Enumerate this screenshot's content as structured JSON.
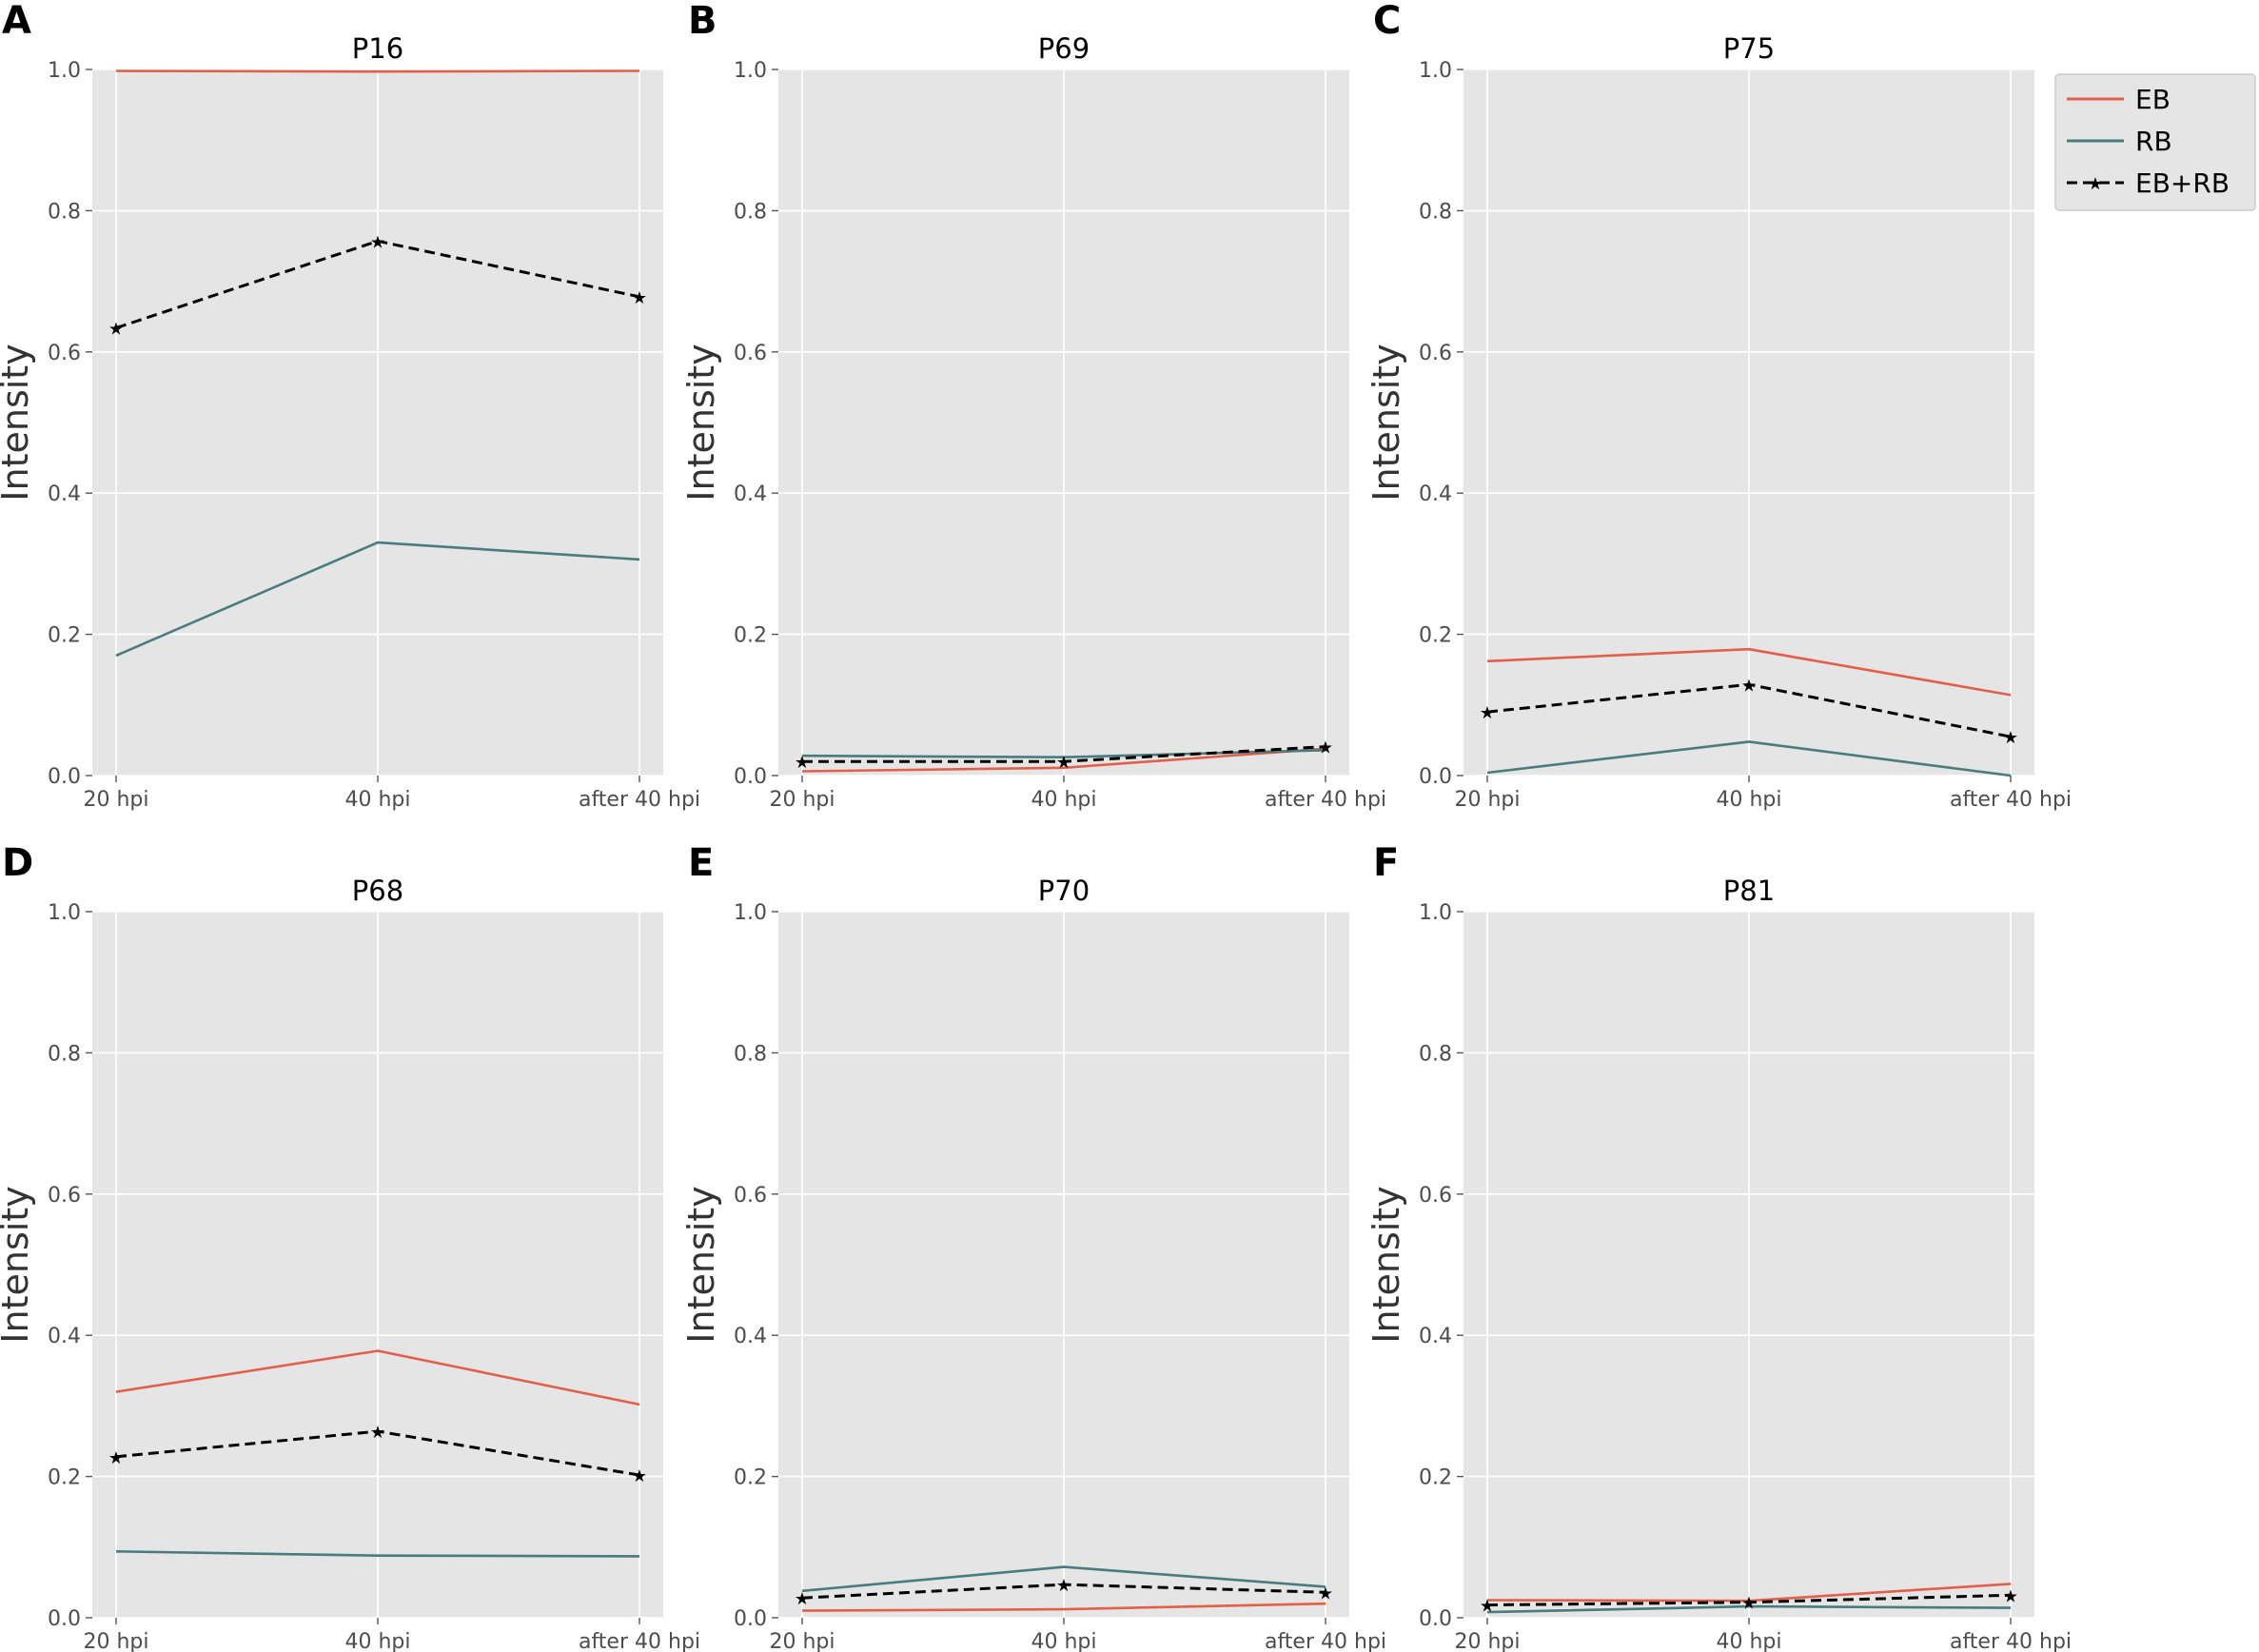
{
  "legend": [
    {
      "name": "EB",
      "color": "#e2604a",
      "dashed": false
    },
    {
      "name": "RB",
      "color": "#4a7b7d",
      "dashed": false
    },
    {
      "name": "EB+RB",
      "color": "#000000",
      "dashed": true
    }
  ],
  "chart_data": [
    {
      "panel": "A",
      "type": "line",
      "title": "P16",
      "xlabel": "",
      "ylabel": "Intensity",
      "categories": [
        "20 hpi",
        "40 hpi",
        "after 40 hpi"
      ],
      "ylim": [
        0,
        1.0
      ],
      "yticks": [
        "0.0",
        "0.2",
        "0.4",
        "0.6",
        "0.8",
        "1.0"
      ],
      "series": [
        {
          "name": "EB",
          "values": [
            0.998,
            0.997,
            0.998
          ]
        },
        {
          "name": "RB",
          "values": [
            0.17,
            0.33,
            0.306
          ]
        },
        {
          "name": "EB+RB",
          "values": [
            0.634,
            0.757,
            0.678
          ]
        }
      ]
    },
    {
      "panel": "B",
      "type": "line",
      "title": "P69",
      "xlabel": "",
      "ylabel": "Intensity",
      "categories": [
        "20 hpi",
        "40 hpi",
        "after 40 hpi"
      ],
      "ylim": [
        0,
        1.0
      ],
      "yticks": [
        "0.0",
        "0.2",
        "0.4",
        "0.6",
        "0.8",
        "1.0"
      ],
      "series": [
        {
          "name": "EB",
          "values": [
            0.006,
            0.011,
            0.038
          ]
        },
        {
          "name": "RB",
          "values": [
            0.028,
            0.026,
            0.036
          ]
        },
        {
          "name": "EB+RB",
          "values": [
            0.02,
            0.02,
            0.041
          ]
        }
      ]
    },
    {
      "panel": "C",
      "type": "line",
      "title": "P75",
      "xlabel": "",
      "ylabel": "Intensity",
      "categories": [
        "20 hpi",
        "40 hpi",
        "after 40 hpi"
      ],
      "ylim": [
        0,
        1.0
      ],
      "yticks": [
        "0.0",
        "0.2",
        "0.4",
        "0.6",
        "0.8",
        "1.0"
      ],
      "series": [
        {
          "name": "EB",
          "values": [
            0.162,
            0.179,
            0.114
          ]
        },
        {
          "name": "RB",
          "values": [
            0.004,
            0.048,
            0.0
          ]
        },
        {
          "name": "EB+RB",
          "values": [
            0.09,
            0.129,
            0.055
          ]
        }
      ]
    },
    {
      "panel": "D",
      "type": "line",
      "title": "P68",
      "xlabel": "",
      "ylabel": "Intensity",
      "categories": [
        "20 hpi",
        "40 hpi",
        "after 40 hpi"
      ],
      "ylim": [
        0,
        1.0
      ],
      "yticks": [
        "0.0",
        "0.2",
        "0.4",
        "0.6",
        "0.8",
        "1.0"
      ],
      "series": [
        {
          "name": "EB",
          "values": [
            0.32,
            0.378,
            0.302
          ]
        },
        {
          "name": "RB",
          "values": [
            0.094,
            0.088,
            0.087
          ]
        },
        {
          "name": "EB+RB",
          "values": [
            0.228,
            0.264,
            0.202
          ]
        }
      ]
    },
    {
      "panel": "E",
      "type": "line",
      "title": "P70",
      "xlabel": "",
      "ylabel": "Intensity",
      "categories": [
        "20 hpi",
        "40 hpi",
        "after 40 hpi"
      ],
      "ylim": [
        0,
        1.0
      ],
      "yticks": [
        "0.0",
        "0.2",
        "0.4",
        "0.6",
        "0.8",
        "1.0"
      ],
      "series": [
        {
          "name": "EB",
          "values": [
            0.01,
            0.012,
            0.02
          ]
        },
        {
          "name": "RB",
          "values": [
            0.038,
            0.072,
            0.044
          ]
        },
        {
          "name": "EB+RB",
          "values": [
            0.028,
            0.047,
            0.036
          ]
        }
      ]
    },
    {
      "panel": "F",
      "type": "line",
      "title": "P81",
      "xlabel": "",
      "ylabel": "Intensity",
      "categories": [
        "20 hpi",
        "40 hpi",
        "after 40 hpi"
      ],
      "ylim": [
        0,
        1.0
      ],
      "yticks": [
        "0.0",
        "0.2",
        "0.4",
        "0.6",
        "0.8",
        "1.0"
      ],
      "series": [
        {
          "name": "EB",
          "values": [
            0.025,
            0.024,
            0.048
          ]
        },
        {
          "name": "RB",
          "values": [
            0.008,
            0.016,
            0.014
          ]
        },
        {
          "name": "EB+RB",
          "values": [
            0.018,
            0.022,
            0.032
          ]
        }
      ]
    }
  ]
}
